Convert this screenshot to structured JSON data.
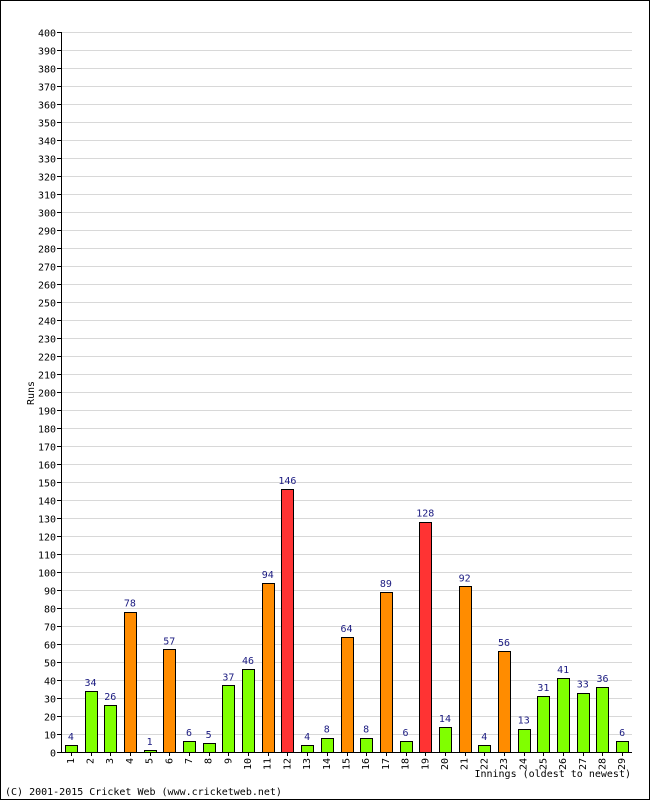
{
  "chart_data": {
    "type": "bar",
    "title": "",
    "xlabel": "Innings (oldest to newest)",
    "ylabel": "Runs",
    "ylim": [
      0,
      400
    ],
    "ytick_step": 10,
    "grid": true,
    "categories": [
      "1",
      "2",
      "3",
      "4",
      "5",
      "6",
      "7",
      "8",
      "9",
      "10",
      "11",
      "12",
      "13",
      "14",
      "15",
      "16",
      "17",
      "18",
      "19",
      "20",
      "21",
      "22",
      "23",
      "24",
      "25",
      "26",
      "27",
      "28",
      "29"
    ],
    "values": [
      4,
      34,
      26,
      78,
      1,
      57,
      6,
      5,
      37,
      46,
      94,
      146,
      4,
      8,
      64,
      8,
      89,
      6,
      128,
      14,
      92,
      4,
      56,
      13,
      31,
      41,
      33,
      36,
      6
    ],
    "color_rule": {
      "below_50": "#80ff00",
      "50_to_99": "#ff8c00",
      "100_plus": "#ff3333"
    }
  },
  "footer": {
    "copyright": "(C) 2001-2015 Cricket Web (www.cricketweb.net)"
  }
}
